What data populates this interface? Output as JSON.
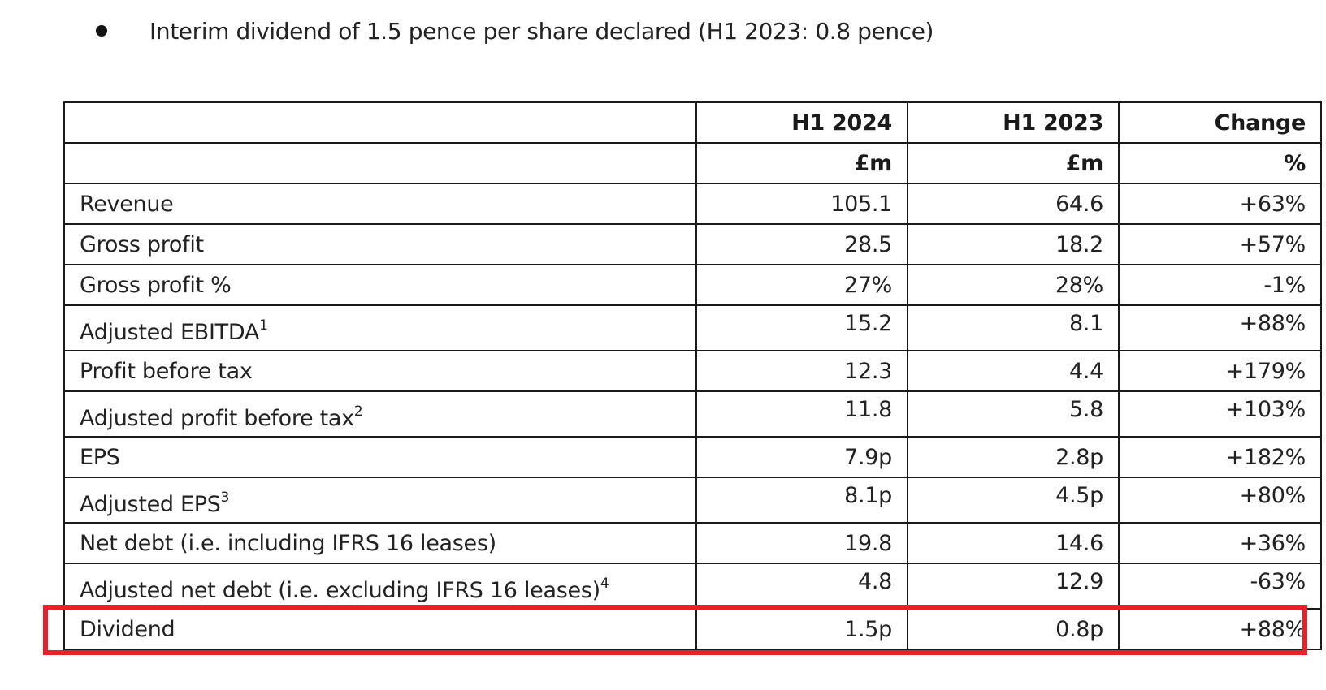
{
  "bullet": {
    "text": "Interim dividend of 1.5 pence per share declared (H1 2023: 0.8 pence)"
  },
  "table": {
    "headers": [
      "",
      "H1 2024",
      "H1 2023",
      "Change"
    ],
    "units": [
      "",
      "£m",
      "£m",
      "%"
    ],
    "rows": [
      {
        "label": "Revenue",
        "sup": "",
        "h1_2024": "105.1",
        "h1_2023": "64.6",
        "change": "+63%"
      },
      {
        "label": "Gross profit",
        "sup": "",
        "h1_2024": "28.5",
        "h1_2023": "18.2",
        "change": "+57%"
      },
      {
        "label": "Gross profit %",
        "sup": "",
        "h1_2024": "27%",
        "h1_2023": "28%",
        "change": "-1%"
      },
      {
        "label": "Adjusted EBITDA",
        "sup": "1",
        "h1_2024": "15.2",
        "h1_2023": "8.1",
        "change": "+88%"
      },
      {
        "label": "Profit before tax",
        "sup": "",
        "h1_2024": "12.3",
        "h1_2023": "4.4",
        "change": "+179%"
      },
      {
        "label": "Adjusted profit before tax",
        "sup": "2",
        "h1_2024": "11.8",
        "h1_2023": "5.8",
        "change": "+103%"
      },
      {
        "label": "EPS",
        "sup": "",
        "h1_2024": "7.9p",
        "h1_2023": "2.8p",
        "change": "+182%"
      },
      {
        "label": "Adjusted EPS",
        "sup": "3",
        "h1_2024": "8.1p",
        "h1_2023": "4.5p",
        "change": "+80%"
      },
      {
        "label": "Net debt (i.e. including IFRS 16 leases)",
        "sup": "",
        "h1_2024": "19.8",
        "h1_2023": "14.6",
        "change": "+36%"
      },
      {
        "label": "Adjusted net debt (i.e. excluding IFRS 16 leases)",
        "sup": "4",
        "h1_2024": "4.8",
        "h1_2023": "12.9",
        "change": "-63%"
      },
      {
        "label": "Dividend",
        "sup": "",
        "h1_2024": "1.5p",
        "h1_2023": "0.8p",
        "change": "+88%"
      }
    ]
  },
  "highlight": {
    "color": "#e8202a",
    "row": "Dividend"
  }
}
